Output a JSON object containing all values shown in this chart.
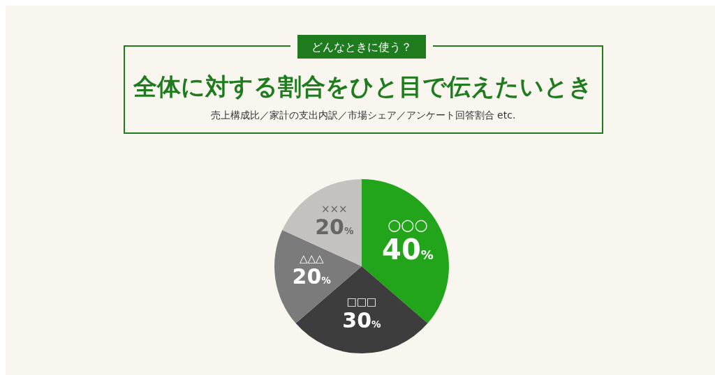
{
  "chart_data": {
    "type": "pie",
    "title": "全体に対する割合をひと目で伝えたいとき",
    "subtitle": "売上構成比／家計の支出内訳／市場シェア／アンケート回答割合 etc.",
    "annotations": [
      "どんなときに使う？"
    ],
    "categories": [
      "○○○",
      "□□□",
      "△△△",
      "×××"
    ],
    "values": [
      40,
      30,
      20,
      20
    ],
    "value_labels": [
      "40%",
      "30%",
      "20%",
      "20%"
    ],
    "colors": [
      "#22a51a",
      "#3d3d3d",
      "#7b7b7b",
      "#c4c2be"
    ]
  }
}
